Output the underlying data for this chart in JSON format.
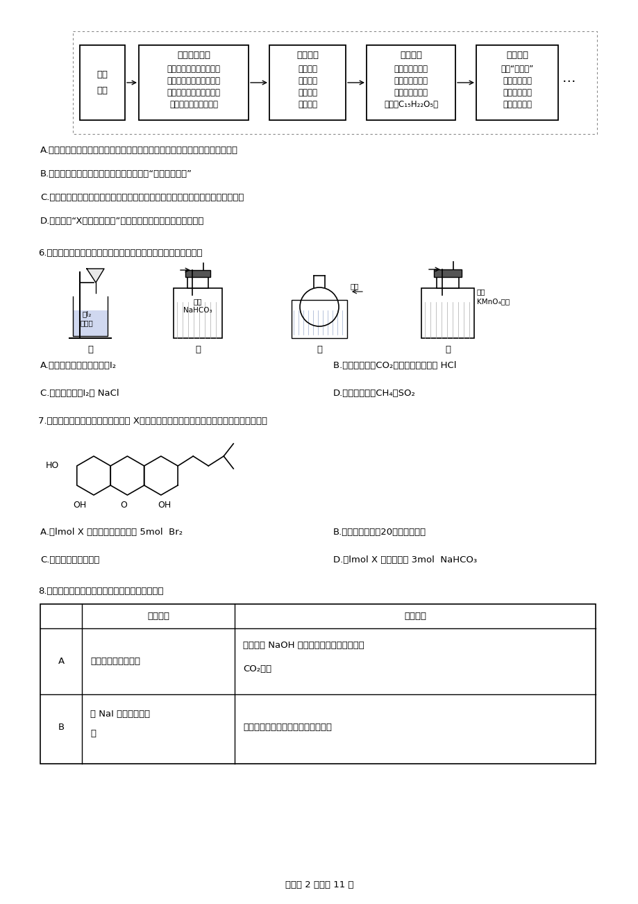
{
  "bg_color": "#ffffff",
  "text_color": "#1a1a1a",
  "font_main": 10.5,
  "font_small": 9.5,
  "font_tiny": 8.5,
  "flowchart_left_label": "研究\n缘起",
  "fc_boxes": [
    {
      "title": "提取有效成分",
      "lines": [
        "水煎熳提取物无效。乙醇",
        "提取物药效也不高。局唠",
        "唠采用永点比乙醇更低的",
        "乙醚提取获得有效物。"
      ]
    },
    {
      "title": "获得晶体",
      "lines": [
        "研究小组",
        "成功分离",
        "并结晶出",
        "青蒿素。"
      ]
    },
    {
      "title": "确定组成",
      "lines": [
        "测得青蒿素的相",
        "对分子质量，结",
        "合碳氢比确定分",
        "子式为C₁₅H₂₂O₅。"
      ]
    },
    {
      "title": "测定结构",
      "lines": [
        "利用“新技术”",
        "确定了青蒿素",
        "分子中各原子",
        "的空间位置。"
      ]
    }
  ],
  "q5_lines": [
    "A.　水煎熳提取物无效的原因可能为青蒿素的热稳定性差或在水中的溶解度不大",
    "B.　乙醚提取青蒿素的方法为萍取，利用了“相似相溶原理”",
    "C.　分离青蒿素和乙醚的方法为蕲馏，需用到空气冷凝管、尾接管、锥形瓶等仪器",
    "D.　可利用“X射线衍射技术”确定青蒿素分子中各原子空间位置"
  ],
  "q6_title": "6.　下列实验选择的实验方案（部分夹持和加燭装置略）错误的是",
  "apparatus_labels": [
    "甲",
    "乙",
    "丙",
    "丁"
  ],
  "apparatus_texts": [
    [
      "含I₂",
      "悬浊液"
    ],
    [
      "饱和",
      "NaHCO₃"
    ],
    [
      "冷水"
    ],
    [
      "酸性",
      "KMnO₄溶液"
    ]
  ],
  "q6_opts_left": [
    "A.　实验甲：海带提磖获得I₂",
    "C.　实验丙：除I₂中 NaCl"
  ],
  "q6_opts_right": [
    "B.　实验乙：测CO₂体积前除去含有的 HCl",
    "D.　实验丁：除CH₄中SO₂"
  ],
  "q7_title": "7.　从大豆分离出来的异黄酮类物质 X，结构简式如图。下列关于该有机物的说法错误的是",
  "q7_line1_left": "A.　lmol X 与渴水反应最多消耗 5mol  Br₂",
  "q7_line1_right": "B.　分子中最多有20个碳原子共面",
  "q7_line2_left": "C.　可形成分子内氢键",
  "q7_line2_right": "D.　lmol X 最多能消耗 3mol  NaHCO₃",
  "q8_title": "8.　为完成下列实验目的，实验方案设计正确的是",
  "tbl_header": [
    "实验目的",
    "实验方案"
  ],
  "tbl_row_a_label": "A",
  "tbl_row_a_col1": "除去苯酚中混有的苯",
  "tbl_row_a_col2_l1": "加适量的 NaOH 溶液分液，向水层通入足量",
  "tbl_row_a_col2_l2": "CO₂过滤",
  "tbl_row_b_label": "B",
  "tbl_row_b_col1_l1": "由 NaI 溶液获得其晶",
  "tbl_row_b_col1_l2": "体",
  "tbl_row_b_col2": "蒸发至大量晶体析出，利用余热蒸干",
  "footer": "试卷第 2 页，共 11 页"
}
